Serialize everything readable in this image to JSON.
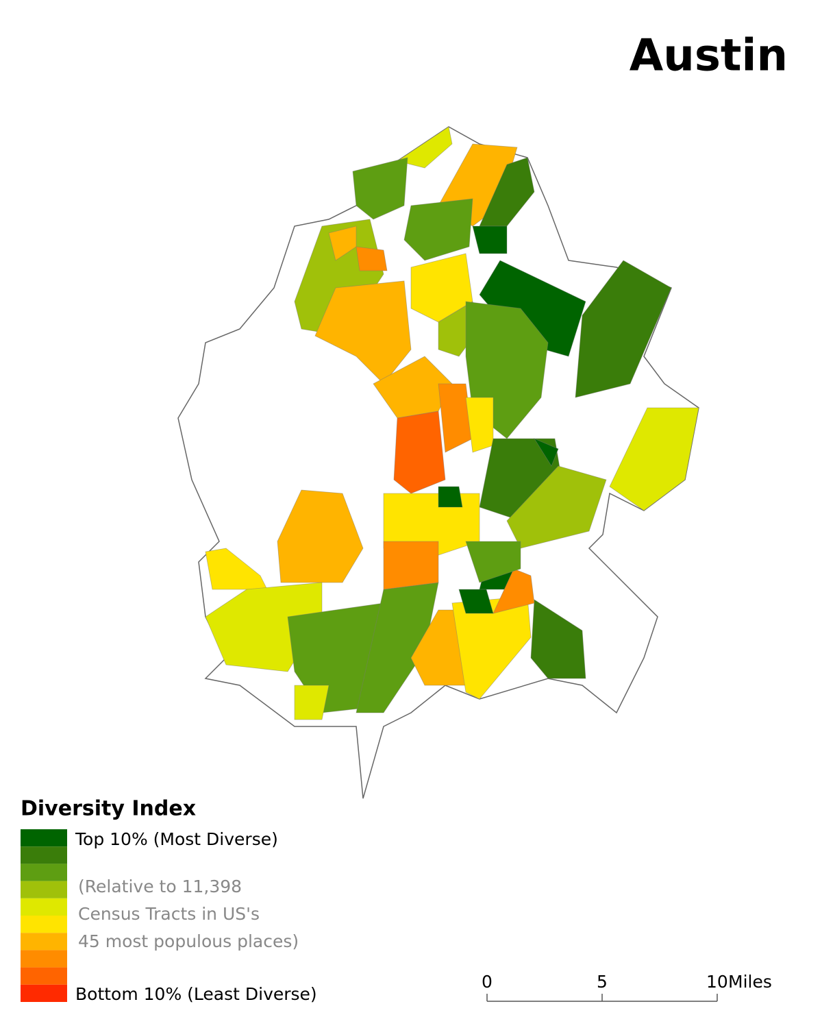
{
  "title": "Austin",
  "legend": {
    "title": "Diversity Index",
    "classes": [
      {
        "color": "#006400"
      },
      {
        "color": "#3a7d0a"
      },
      {
        "color": "#5e9e12"
      },
      {
        "color": "#a0c10a"
      },
      {
        "color": "#dfe800"
      },
      {
        "color": "#ffe400"
      },
      {
        "color": "#ffb400"
      },
      {
        "color": "#ff8c00"
      },
      {
        "color": "#ff6400"
      },
      {
        "color": "#ff2a00"
      }
    ],
    "top_label": "Top 10% (Most Diverse)",
    "bottom_label": "Bottom 10% (Least Diverse)",
    "note": [
      "(Relative to 11,398",
      "Census Tracts in US's",
      "45 most populous places)"
    ]
  },
  "scale_bar": {
    "ticks": [
      0,
      5,
      10
    ],
    "unit": "Miles"
  }
}
